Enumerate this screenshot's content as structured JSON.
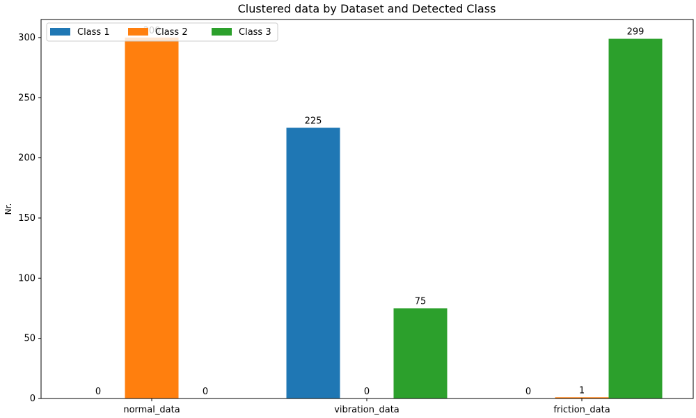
{
  "chart_data": {
    "type": "bar",
    "title": "Clustered data by Dataset and Detected Class",
    "xlabel": "",
    "ylabel": "Nr.",
    "categories": [
      "normal_data",
      "vibration_data",
      "friction_data"
    ],
    "series": [
      {
        "name": "Class 1",
        "color": "#1f77b4",
        "values": [
          0,
          225,
          0
        ]
      },
      {
        "name": "Class 2",
        "color": "#ff7f0e",
        "values": [
          300,
          0,
          1
        ]
      },
      {
        "name": "Class 3",
        "color": "#2ca02c",
        "values": [
          0,
          75,
          299
        ]
      }
    ],
    "ylim": [
      0,
      315
    ],
    "yticks": [
      0,
      50,
      100,
      150,
      200,
      250,
      300
    ],
    "grid": false,
    "legend_position": "top-left",
    "data_labels": true
  }
}
